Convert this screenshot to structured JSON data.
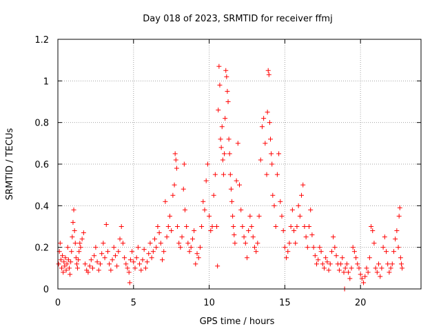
{
  "chart_data": {
    "type": "scatter",
    "title": "Day 018 of 2023, SRMTID for receiver ffmj",
    "xlabel": "GPS time / hours",
    "ylabel": "SRMTID / TECUs",
    "xlim": [
      0,
      24
    ],
    "ylim": [
      0,
      1.2
    ],
    "xticks": [
      0,
      5,
      10,
      15,
      20
    ],
    "xtick_labels": [
      "0",
      "5",
      "10",
      "15",
      "20"
    ],
    "yticks": [
      0,
      0.2,
      0.4,
      0.6,
      0.8,
      1,
      1.2
    ],
    "ytick_labels": [
      "0",
      "0.2",
      "0.4",
      "0.6",
      "0.8",
      "1",
      "1.2"
    ],
    "grid": true,
    "marker": "+",
    "color": "#ff0000",
    "series": [
      {
        "name": "SRMTID",
        "points": [
          [
            0.05,
            0.12
          ],
          [
            0.1,
            0.18
          ],
          [
            0.15,
            0.22
          ],
          [
            0.2,
            0.14
          ],
          [
            0.25,
            0.1
          ],
          [
            0.3,
            0.16
          ],
          [
            0.35,
            0.08
          ],
          [
            0.4,
            0.13
          ],
          [
            0.45,
            0.11
          ],
          [
            0.5,
            0.15
          ],
          [
            0.55,
            0.09
          ],
          [
            0.6,
            0.12
          ],
          [
            0.65,
            0.2
          ],
          [
            0.7,
            0.14
          ],
          [
            0.75,
            0.1
          ],
          [
            0.8,
            0.07
          ],
          [
            0.85,
            0.13
          ],
          [
            0.9,
            0.18
          ],
          [
            0.95,
            0.25
          ],
          [
            1.0,
            0.32
          ],
          [
            1.05,
            0.38
          ],
          [
            1.1,
            0.28
          ],
          [
            1.15,
            0.22
          ],
          [
            1.2,
            0.15
          ],
          [
            1.25,
            0.12
          ],
          [
            1.3,
            0.1
          ],
          [
            1.35,
            0.14
          ],
          [
            1.4,
            0.18
          ],
          [
            1.45,
            0.22
          ],
          [
            1.5,
            0.2
          ],
          [
            1.6,
            0.24
          ],
          [
            1.7,
            0.27
          ],
          [
            1.8,
            0.12
          ],
          [
            1.9,
            0.09
          ],
          [
            2.0,
            0.08
          ],
          [
            2.1,
            0.11
          ],
          [
            2.2,
            0.14
          ],
          [
            2.3,
            0.1
          ],
          [
            2.4,
            0.16
          ],
          [
            2.5,
            0.2
          ],
          [
            2.6,
            0.13
          ],
          [
            2.7,
            0.09
          ],
          [
            2.8,
            0.12
          ],
          [
            2.9,
            0.17
          ],
          [
            3.0,
            0.22
          ],
          [
            3.1,
            0.15
          ],
          [
            3.2,
            0.31
          ],
          [
            3.3,
            0.18
          ],
          [
            3.4,
            0.12
          ],
          [
            3.5,
            0.09
          ],
          [
            3.6,
            0.14
          ],
          [
            3.7,
            0.2
          ],
          [
            3.8,
            0.16
          ],
          [
            3.9,
            0.11
          ],
          [
            4.0,
            0.18
          ],
          [
            4.1,
            0.24
          ],
          [
            4.2,
            0.3
          ],
          [
            4.3,
            0.22
          ],
          [
            4.4,
            0.15
          ],
          [
            4.5,
            0.12
          ],
          [
            4.6,
            0.1
          ],
          [
            4.7,
            0.08
          ],
          [
            4.75,
            0.03
          ],
          [
            4.8,
            0.14
          ],
          [
            4.9,
            0.18
          ],
          [
            5.0,
            0.13
          ],
          [
            5.1,
            0.1
          ],
          [
            5.2,
            0.15
          ],
          [
            5.3,
            0.2
          ],
          [
            5.4,
            0.12
          ],
          [
            5.5,
            0.09
          ],
          [
            5.6,
            0.14
          ],
          [
            5.7,
            0.19
          ],
          [
            5.8,
            0.1
          ],
          [
            5.9,
            0.13
          ],
          [
            6.0,
            0.17
          ],
          [
            6.1,
            0.22
          ],
          [
            6.2,
            0.15
          ],
          [
            6.3,
            0.18
          ],
          [
            6.4,
            0.24
          ],
          [
            6.5,
            0.2
          ],
          [
            6.6,
            0.3
          ],
          [
            6.7,
            0.27
          ],
          [
            6.8,
            0.22
          ],
          [
            6.9,
            0.14
          ],
          [
            7.0,
            0.18
          ],
          [
            7.1,
            0.42
          ],
          [
            7.2,
            0.25
          ],
          [
            7.3,
            0.3
          ],
          [
            7.4,
            0.35
          ],
          [
            7.5,
            0.28
          ],
          [
            7.6,
            0.45
          ],
          [
            7.7,
            0.5
          ],
          [
            7.75,
            0.65
          ],
          [
            7.8,
            0.62
          ],
          [
            7.85,
            0.58
          ],
          [
            7.9,
            0.3
          ],
          [
            8.0,
            0.22
          ],
          [
            8.1,
            0.2
          ],
          [
            8.2,
            0.25
          ],
          [
            8.3,
            0.48
          ],
          [
            8.35,
            0.6
          ],
          [
            8.4,
            0.38
          ],
          [
            8.5,
            0.3
          ],
          [
            8.6,
            0.22
          ],
          [
            8.7,
            0.18
          ],
          [
            8.8,
            0.2
          ],
          [
            8.9,
            0.24
          ],
          [
            9.0,
            0.28
          ],
          [
            9.1,
            0.12
          ],
          [
            9.2,
            0.17
          ],
          [
            9.3,
            0.15
          ],
          [
            9.4,
            0.2
          ],
          [
            9.5,
            0.3
          ],
          [
            9.6,
            0.42
          ],
          [
            9.7,
            0.38
          ],
          [
            9.8,
            0.52
          ],
          [
            9.9,
            0.6
          ],
          [
            10.0,
            0.35
          ],
          [
            10.1,
            0.28
          ],
          [
            10.2,
            0.3
          ],
          [
            10.3,
            0.45
          ],
          [
            10.4,
            0.55
          ],
          [
            10.5,
            0.3
          ],
          [
            10.55,
            0.11
          ],
          [
            10.6,
            0.86
          ],
          [
            10.65,
            1.07
          ],
          [
            10.7,
            0.98
          ],
          [
            10.75,
            0.72
          ],
          [
            10.8,
            0.68
          ],
          [
            10.85,
            0.78
          ],
          [
            10.9,
            0.62
          ],
          [
            10.95,
            0.55
          ],
          [
            11.0,
            0.65
          ],
          [
            11.05,
            0.82
          ],
          [
            11.1,
            1.05
          ],
          [
            11.15,
            1.02
          ],
          [
            11.2,
            0.95
          ],
          [
            11.25,
            0.9
          ],
          [
            11.3,
            0.72
          ],
          [
            11.35,
            0.65
          ],
          [
            11.4,
            0.55
          ],
          [
            11.45,
            0.48
          ],
          [
            11.5,
            0.42
          ],
          [
            11.55,
            0.35
          ],
          [
            11.6,
            0.3
          ],
          [
            11.65,
            0.26
          ],
          [
            11.7,
            0.22
          ],
          [
            11.8,
            0.52
          ],
          [
            11.9,
            0.7
          ],
          [
            12.0,
            0.5
          ],
          [
            12.1,
            0.38
          ],
          [
            12.2,
            0.3
          ],
          [
            12.3,
            0.25
          ],
          [
            12.4,
            0.22
          ],
          [
            12.5,
            0.15
          ],
          [
            12.6,
            0.28
          ],
          [
            12.7,
            0.35
          ],
          [
            12.8,
            0.3
          ],
          [
            12.9,
            0.25
          ],
          [
            13.0,
            0.2
          ],
          [
            13.1,
            0.18
          ],
          [
            13.2,
            0.22
          ],
          [
            13.3,
            0.35
          ],
          [
            13.4,
            0.62
          ],
          [
            13.5,
            0.78
          ],
          [
            13.6,
            0.82
          ],
          [
            13.7,
            0.7
          ],
          [
            13.8,
            0.55
          ],
          [
            13.85,
            0.85
          ],
          [
            13.9,
            1.05
          ],
          [
            13.95,
            1.03
          ],
          [
            14.0,
            0.8
          ],
          [
            14.05,
            0.72
          ],
          [
            14.1,
            0.65
          ],
          [
            14.15,
            0.6
          ],
          [
            14.2,
            0.45
          ],
          [
            14.3,
            0.4
          ],
          [
            14.4,
            0.3
          ],
          [
            14.5,
            0.55
          ],
          [
            14.6,
            0.65
          ],
          [
            14.7,
            0.42
          ],
          [
            14.8,
            0.35
          ],
          [
            14.9,
            0.28
          ],
          [
            15.0,
            0.2
          ],
          [
            15.1,
            0.15
          ],
          [
            15.2,
            0.18
          ],
          [
            15.3,
            0.22
          ],
          [
            15.4,
            0.3
          ],
          [
            15.5,
            0.38
          ],
          [
            15.6,
            0.28
          ],
          [
            15.7,
            0.22
          ],
          [
            15.8,
            0.3
          ],
          [
            15.9,
            0.4
          ],
          [
            16.0,
            0.35
          ],
          [
            16.1,
            0.45
          ],
          [
            16.2,
            0.5
          ],
          [
            16.3,
            0.3
          ],
          [
            16.4,
            0.25
          ],
          [
            16.5,
            0.2
          ],
          [
            16.6,
            0.3
          ],
          [
            16.7,
            0.38
          ],
          [
            16.8,
            0.26
          ],
          [
            16.9,
            0.2
          ],
          [
            17.0,
            0.16
          ],
          [
            17.1,
            0.12
          ],
          [
            17.2,
            0.14
          ],
          [
            17.3,
            0.2
          ],
          [
            17.4,
            0.18
          ],
          [
            17.5,
            0.12
          ],
          [
            17.6,
            0.1
          ],
          [
            17.7,
            0.15
          ],
          [
            17.8,
            0.13
          ],
          [
            17.9,
            0.09
          ],
          [
            18.0,
            0.12
          ],
          [
            18.1,
            0.18
          ],
          [
            18.2,
            0.25
          ],
          [
            18.3,
            0.2
          ],
          [
            18.4,
            0.16
          ],
          [
            18.5,
            0.12
          ],
          [
            18.6,
            0.09
          ],
          [
            18.7,
            0.12
          ],
          [
            18.8,
            0.15
          ],
          [
            18.9,
            0.08
          ],
          [
            18.95,
            0.0
          ],
          [
            19.0,
            0.1
          ],
          [
            19.1,
            0.12
          ],
          [
            19.2,
            0.08
          ],
          [
            19.3,
            0.05
          ],
          [
            19.4,
            0.1
          ],
          [
            19.5,
            0.2
          ],
          [
            19.6,
            0.18
          ],
          [
            19.7,
            0.15
          ],
          [
            19.8,
            0.12
          ],
          [
            19.9,
            0.1
          ],
          [
            20.0,
            0.07
          ],
          [
            20.1,
            0.05
          ],
          [
            20.2,
            0.03
          ],
          [
            20.3,
            0.06
          ],
          [
            20.4,
            0.1
          ],
          [
            20.5,
            0.08
          ],
          [
            20.6,
            0.15
          ],
          [
            20.7,
            0.3
          ],
          [
            20.8,
            0.28
          ],
          [
            20.9,
            0.22
          ],
          [
            21.0,
            0.1
          ],
          [
            21.1,
            0.08
          ],
          [
            21.2,
            0.12
          ],
          [
            21.3,
            0.06
          ],
          [
            21.4,
            0.1
          ],
          [
            21.5,
            0.2
          ],
          [
            21.6,
            0.25
          ],
          [
            21.7,
            0.18
          ],
          [
            21.8,
            0.12
          ],
          [
            21.9,
            0.08
          ],
          [
            22.0,
            0.1
          ],
          [
            22.1,
            0.12
          ],
          [
            22.2,
            0.18
          ],
          [
            22.3,
            0.24
          ],
          [
            22.4,
            0.28
          ],
          [
            22.5,
            0.2
          ],
          [
            22.55,
            0.35
          ],
          [
            22.6,
            0.39
          ],
          [
            22.65,
            0.15
          ],
          [
            22.7,
            0.12
          ],
          [
            22.75,
            0.1
          ]
        ]
      }
    ]
  }
}
